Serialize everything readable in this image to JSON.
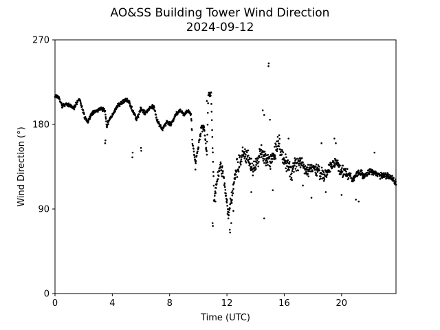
{
  "chart_data": {
    "type": "scatter",
    "title": "AO&SS Building Tower Wind Direction",
    "subtitle": "2024-09-12",
    "xlabel": "Time (UTC)",
    "ylabel": "Wind Direction (°)",
    "xlim": [
      0,
      23.8
    ],
    "ylim": [
      0,
      270
    ],
    "xticks": [
      0,
      4,
      8,
      12,
      16,
      20
    ],
    "yticks": [
      0,
      90,
      180,
      270
    ],
    "grid": false,
    "legend": "none",
    "colors": {
      "marker": "#000000",
      "axis": "#000000"
    },
    "anchors": [
      [
        0.0,
        211
      ],
      [
        0.3,
        208
      ],
      [
        0.5,
        199
      ],
      [
        0.8,
        202
      ],
      [
        1.1,
        200
      ],
      [
        1.3,
        197
      ],
      [
        1.5,
        202
      ],
      [
        1.7,
        208
      ],
      [
        1.9,
        197
      ],
      [
        2.1,
        187
      ],
      [
        2.3,
        183
      ],
      [
        2.6,
        192
      ],
      [
        2.9,
        195
      ],
      [
        3.2,
        197
      ],
      [
        3.5,
        195
      ],
      [
        3.6,
        178
      ],
      [
        3.8,
        185
      ],
      [
        4.1,
        192
      ],
      [
        4.3,
        199
      ],
      [
        4.6,
        202
      ],
      [
        4.9,
        206
      ],
      [
        5.2,
        203
      ],
      [
        5.5,
        192
      ],
      [
        5.7,
        185
      ],
      [
        6.0,
        197
      ],
      [
        6.3,
        192
      ],
      [
        6.6,
        197
      ],
      [
        6.9,
        199
      ],
      [
        7.1,
        185
      ],
      [
        7.3,
        180
      ],
      [
        7.5,
        175
      ],
      [
        7.8,
        183
      ],
      [
        8.1,
        180
      ],
      [
        8.4,
        190
      ],
      [
        8.7,
        195
      ],
      [
        9.0,
        190
      ],
      [
        9.3,
        195
      ],
      [
        9.5,
        190
      ],
      [
        9.6,
        160
      ],
      [
        9.8,
        140
      ],
      [
        10.0,
        155
      ],
      [
        10.2,
        175
      ],
      [
        10.4,
        178
      ],
      [
        10.6,
        148
      ],
      [
        10.7,
        212
      ],
      [
        10.9,
        212
      ],
      [
        11.1,
        100
      ],
      [
        11.3,
        120
      ],
      [
        11.5,
        135
      ],
      [
        11.7,
        130
      ],
      [
        11.9,
        108
      ],
      [
        12.1,
        85
      ],
      [
        12.3,
        100
      ],
      [
        12.6,
        130
      ],
      [
        12.9,
        140
      ],
      [
        13.2,
        150
      ],
      [
        13.5,
        145
      ],
      [
        13.8,
        130
      ],
      [
        14.1,
        140
      ],
      [
        14.4,
        150
      ],
      [
        14.7,
        145
      ],
      [
        15.0,
        140
      ],
      [
        15.3,
        150
      ],
      [
        15.6,
        160
      ],
      [
        15.9,
        145
      ],
      [
        16.2,
        135
      ],
      [
        16.5,
        130
      ],
      [
        16.8,
        140
      ],
      [
        17.2,
        140
      ],
      [
        17.6,
        130
      ],
      [
        18.0,
        135
      ],
      [
        18.4,
        130
      ],
      [
        18.8,
        125
      ],
      [
        19.2,
        135
      ],
      [
        19.6,
        140
      ],
      [
        20.0,
        130
      ],
      [
        20.4,
        128
      ],
      [
        20.8,
        122
      ],
      [
        21.2,
        130
      ],
      [
        21.6,
        125
      ],
      [
        22.0,
        130
      ],
      [
        22.4,
        128
      ],
      [
        22.8,
        125
      ],
      [
        23.2,
        125
      ],
      [
        23.6,
        122
      ],
      [
        23.8,
        118
      ]
    ],
    "outliers": [
      [
        3.5,
        160
      ],
      [
        3.52,
        163
      ],
      [
        5.4,
        145
      ],
      [
        5.42,
        150
      ],
      [
        6.0,
        155
      ],
      [
        6.02,
        152
      ],
      [
        9.8,
        132
      ],
      [
        10.6,
        205
      ],
      [
        11.0,
        75
      ],
      [
        11.02,
        72
      ],
      [
        11.2,
        98
      ],
      [
        12.1,
        80
      ],
      [
        12.2,
        68
      ],
      [
        12.22,
        65
      ],
      [
        12.3,
        75
      ],
      [
        12.45,
        88
      ],
      [
        13.7,
        108
      ],
      [
        14.6,
        80
      ],
      [
        14.9,
        242
      ],
      [
        14.92,
        245
      ],
      [
        14.5,
        195
      ],
      [
        14.6,
        190
      ],
      [
        15.0,
        185
      ],
      [
        15.2,
        110
      ],
      [
        16.3,
        165
      ],
      [
        17.3,
        115
      ],
      [
        17.9,
        102
      ],
      [
        18.6,
        160
      ],
      [
        18.9,
        108
      ],
      [
        19.5,
        165
      ],
      [
        19.6,
        160
      ],
      [
        20.0,
        105
      ],
      [
        21.0,
        100
      ],
      [
        21.2,
        98
      ],
      [
        22.3,
        150
      ]
    ],
    "samples": 1440,
    "seed": 12
  }
}
